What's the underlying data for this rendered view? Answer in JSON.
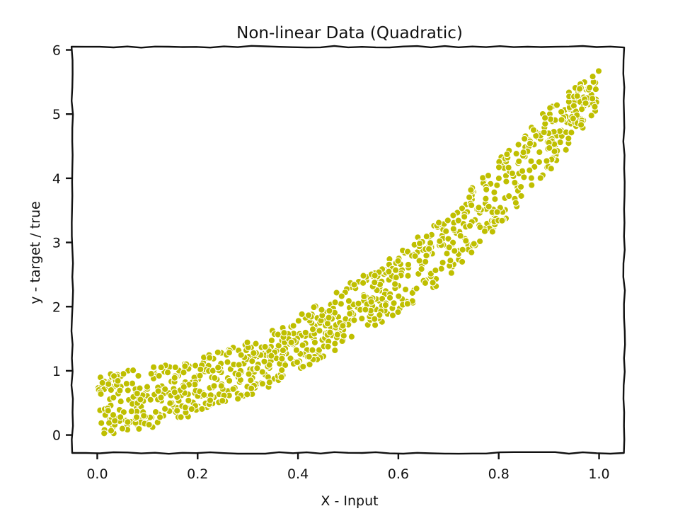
{
  "chart_data": {
    "type": "scatter",
    "title": "Non-linear Data (Quadratic)",
    "xlabel": "X - Input",
    "ylabel": "y - target / true",
    "xlim": [
      -0.05,
      1.05
    ],
    "ylim": [
      -0.28,
      6.05
    ],
    "xticks": [
      0.0,
      0.2,
      0.4,
      0.6,
      0.8,
      1.0
    ],
    "xtick_labels": [
      "0.0",
      "0.2",
      "0.4",
      "0.6",
      "0.8",
      "1.0"
    ],
    "yticks": [
      0,
      1,
      2,
      3,
      4,
      5,
      6
    ],
    "ytick_labels": [
      "0",
      "1",
      "2",
      "3",
      "4",
      "5",
      "6"
    ],
    "grid": false,
    "marker_color": "#bfbf00",
    "x_range": [
      0.0,
      1.0
    ],
    "y_band_lower": [
      [
        0.0,
        0.0
      ],
      [
        0.1,
        0.08
      ],
      [
        0.2,
        0.33
      ],
      [
        0.3,
        0.6
      ],
      [
        0.4,
        0.95
      ],
      [
        0.5,
        1.45
      ],
      [
        0.6,
        1.9
      ],
      [
        0.7,
        2.45
      ],
      [
        0.8,
        3.25
      ],
      [
        0.9,
        4.1
      ],
      [
        1.0,
        5.05
      ]
    ],
    "y_band_upper": [
      [
        0.0,
        0.95
      ],
      [
        0.1,
        1.05
      ],
      [
        0.2,
        1.2
      ],
      [
        0.3,
        1.45
      ],
      [
        0.4,
        1.85
      ],
      [
        0.5,
        2.35
      ],
      [
        0.6,
        2.85
      ],
      [
        0.7,
        3.45
      ],
      [
        0.8,
        4.3
      ],
      [
        0.9,
        5.1
      ],
      [
        1.0,
        5.7
      ]
    ],
    "point_count": 1000
  }
}
